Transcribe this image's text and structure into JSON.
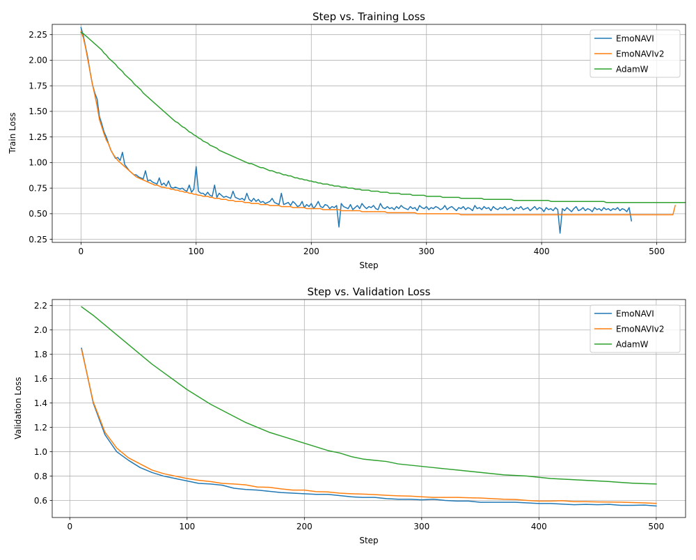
{
  "colors": {
    "EmoNAVI": "#1f77b4",
    "EmoNAVIv2": "#ff7f0e",
    "AdamW": "#2ca02c"
  },
  "chart_data": [
    {
      "type": "line",
      "title": "Step vs. Training Loss",
      "xlabel": "Step",
      "ylabel": "Train Loss",
      "xlim": [
        -25,
        525
      ],
      "ylim": [
        0.22,
        2.35
      ],
      "xticks": [
        0,
        100,
        200,
        300,
        400,
        500
      ],
      "yticks": [
        0.25,
        0.5,
        0.75,
        1.0,
        1.25,
        1.5,
        1.75,
        2.0,
        2.25
      ],
      "ytick_labels": [
        "0.25",
        "0.50",
        "0.75",
        "1.00",
        "1.25",
        "1.50",
        "1.75",
        "2.00",
        "2.25"
      ],
      "grid": true,
      "legend_position": "top-right",
      "x_step": 2,
      "series": [
        {
          "name": "EmoNAVI",
          "color_key": "EmoNAVI",
          "values": [
            2.32,
            2.24,
            2.13,
            2.02,
            1.88,
            1.76,
            1.68,
            1.62,
            1.45,
            1.38,
            1.3,
            1.25,
            1.18,
            1.12,
            1.08,
            1.04,
            1.05,
            1.02,
            1.1,
            0.98,
            0.95,
            0.92,
            0.9,
            0.88,
            0.88,
            0.86,
            0.85,
            0.84,
            0.92,
            0.82,
            0.83,
            0.81,
            0.8,
            0.79,
            0.85,
            0.78,
            0.8,
            0.77,
            0.82,
            0.76,
            0.75,
            0.76,
            0.75,
            0.74,
            0.75,
            0.73,
            0.72,
            0.78,
            0.71,
            0.74,
            0.96,
            0.72,
            0.7,
            0.7,
            0.68,
            0.71,
            0.68,
            0.67,
            0.78,
            0.66,
            0.7,
            0.68,
            0.66,
            0.67,
            0.66,
            0.65,
            0.72,
            0.66,
            0.65,
            0.64,
            0.65,
            0.63,
            0.7,
            0.64,
            0.62,
            0.65,
            0.62,
            0.64,
            0.61,
            0.62,
            0.6,
            0.61,
            0.62,
            0.65,
            0.61,
            0.6,
            0.59,
            0.7,
            0.59,
            0.6,
            0.61,
            0.58,
            0.62,
            0.6,
            0.57,
            0.58,
            0.62,
            0.56,
            0.59,
            0.57,
            0.6,
            0.55,
            0.58,
            0.62,
            0.57,
            0.56,
            0.59,
            0.58,
            0.55,
            0.57,
            0.56,
            0.58,
            0.37,
            0.6,
            0.57,
            0.56,
            0.55,
            0.59,
            0.54,
            0.56,
            0.58,
            0.55,
            0.6,
            0.57,
            0.55,
            0.57,
            0.56,
            0.58,
            0.55,
            0.54,
            0.6,
            0.56,
            0.55,
            0.57,
            0.55,
            0.56,
            0.54,
            0.57,
            0.55,
            0.58,
            0.56,
            0.55,
            0.54,
            0.57,
            0.55,
            0.56,
            0.53,
            0.58,
            0.56,
            0.55,
            0.57,
            0.54,
            0.56,
            0.55,
            0.57,
            0.56,
            0.54,
            0.55,
            0.58,
            0.54,
            0.56,
            0.57,
            0.55,
            0.53,
            0.56,
            0.55,
            0.57,
            0.54,
            0.56,
            0.55,
            0.53,
            0.58,
            0.55,
            0.56,
            0.54,
            0.57,
            0.55,
            0.56,
            0.53,
            0.57,
            0.55,
            0.54,
            0.56,
            0.55,
            0.57,
            0.54,
            0.55,
            0.56,
            0.53,
            0.56,
            0.55,
            0.57,
            0.54,
            0.55,
            0.56,
            0.53,
            0.55,
            0.57,
            0.54,
            0.56,
            0.55,
            0.52,
            0.56,
            0.54,
            0.55,
            0.53,
            0.56,
            0.54,
            0.31,
            0.55,
            0.53,
            0.56,
            0.54,
            0.52,
            0.55,
            0.57,
            0.53,
            0.54,
            0.56,
            0.53,
            0.55,
            0.54,
            0.52,
            0.56,
            0.54,
            0.55,
            0.53,
            0.56,
            0.54,
            0.55,
            0.53,
            0.55,
            0.54,
            0.56,
            0.53,
            0.55,
            0.54,
            0.52,
            0.56,
            0.43
          ]
        },
        {
          "name": "EmoNAVIv2",
          "color_key": "EmoNAVIv2",
          "values": [
            2.28,
            2.22,
            2.12,
            2.0,
            1.88,
            1.76,
            1.66,
            1.55,
            1.42,
            1.35,
            1.28,
            1.22,
            1.18,
            1.12,
            1.08,
            1.05,
            1.02,
            1.0,
            0.98,
            0.96,
            0.94,
            0.92,
            0.9,
            0.88,
            0.86,
            0.85,
            0.84,
            0.83,
            0.82,
            0.81,
            0.8,
            0.79,
            0.78,
            0.78,
            0.77,
            0.76,
            0.76,
            0.75,
            0.75,
            0.74,
            0.74,
            0.73,
            0.73,
            0.72,
            0.72,
            0.71,
            0.71,
            0.7,
            0.7,
            0.69,
            0.69,
            0.68,
            0.68,
            0.67,
            0.67,
            0.67,
            0.66,
            0.66,
            0.65,
            0.65,
            0.65,
            0.64,
            0.64,
            0.64,
            0.63,
            0.63,
            0.63,
            0.62,
            0.62,
            0.62,
            0.62,
            0.61,
            0.61,
            0.61,
            0.6,
            0.6,
            0.6,
            0.6,
            0.59,
            0.59,
            0.59,
            0.59,
            0.58,
            0.58,
            0.58,
            0.58,
            0.58,
            0.57,
            0.57,
            0.57,
            0.57,
            0.57,
            0.56,
            0.56,
            0.56,
            0.56,
            0.56,
            0.56,
            0.55,
            0.55,
            0.55,
            0.55,
            0.55,
            0.55,
            0.55,
            0.54,
            0.54,
            0.54,
            0.54,
            0.54,
            0.54,
            0.54,
            0.54,
            0.53,
            0.53,
            0.53,
            0.53,
            0.53,
            0.53,
            0.53,
            0.53,
            0.53,
            0.52,
            0.52,
            0.52,
            0.52,
            0.52,
            0.52,
            0.52,
            0.52,
            0.52,
            0.52,
            0.52,
            0.51,
            0.51,
            0.51,
            0.51,
            0.51,
            0.51,
            0.51,
            0.51,
            0.51,
            0.51,
            0.51,
            0.51,
            0.51,
            0.5,
            0.5,
            0.5,
            0.5,
            0.5,
            0.5,
            0.5,
            0.5,
            0.5,
            0.5,
            0.5,
            0.5,
            0.5,
            0.5,
            0.5,
            0.5,
            0.5,
            0.5,
            0.5,
            0.49,
            0.49,
            0.49,
            0.49,
            0.49,
            0.49,
            0.49,
            0.49,
            0.49,
            0.49,
            0.49,
            0.49,
            0.49,
            0.49,
            0.49,
            0.49,
            0.49,
            0.49,
            0.49,
            0.49,
            0.49,
            0.49,
            0.49,
            0.49,
            0.49,
            0.49,
            0.49,
            0.49,
            0.49,
            0.49,
            0.49,
            0.49,
            0.49,
            0.49,
            0.49,
            0.49,
            0.49,
            0.49,
            0.49,
            0.49,
            0.49,
            0.49,
            0.49,
            0.49,
            0.49,
            0.49,
            0.49,
            0.49,
            0.49,
            0.49,
            0.49,
            0.49,
            0.49,
            0.49,
            0.49,
            0.49,
            0.49,
            0.49,
            0.49,
            0.49,
            0.49,
            0.49,
            0.49,
            0.49,
            0.49,
            0.49,
            0.49,
            0.49,
            0.49,
            0.49,
            0.49,
            0.49,
            0.49,
            0.49,
            0.49,
            0.49,
            0.49,
            0.49,
            0.49,
            0.49,
            0.49,
            0.49,
            0.49,
            0.49,
            0.49,
            0.49,
            0.49,
            0.49,
            0.49,
            0.49,
            0.49,
            0.49,
            0.49,
            0.58
          ]
        },
        {
          "name": "AdamW",
          "color_key": "AdamW",
          "values": [
            2.27,
            2.26,
            2.24,
            2.22,
            2.2,
            2.18,
            2.16,
            2.14,
            2.12,
            2.1,
            2.07,
            2.05,
            2.02,
            2.0,
            1.98,
            1.96,
            1.93,
            1.91,
            1.89,
            1.86,
            1.84,
            1.82,
            1.8,
            1.77,
            1.75,
            1.73,
            1.71,
            1.68,
            1.66,
            1.64,
            1.62,
            1.6,
            1.58,
            1.56,
            1.54,
            1.52,
            1.5,
            1.48,
            1.46,
            1.44,
            1.42,
            1.4,
            1.39,
            1.37,
            1.35,
            1.34,
            1.32,
            1.3,
            1.29,
            1.27,
            1.26,
            1.24,
            1.23,
            1.21,
            1.2,
            1.19,
            1.17,
            1.16,
            1.15,
            1.14,
            1.12,
            1.11,
            1.1,
            1.09,
            1.08,
            1.07,
            1.06,
            1.05,
            1.04,
            1.03,
            1.02,
            1.01,
            1.0,
            0.99,
            0.99,
            0.98,
            0.97,
            0.96,
            0.95,
            0.95,
            0.94,
            0.93,
            0.92,
            0.92,
            0.91,
            0.9,
            0.9,
            0.89,
            0.88,
            0.88,
            0.87,
            0.87,
            0.86,
            0.85,
            0.85,
            0.84,
            0.84,
            0.83,
            0.83,
            0.82,
            0.82,
            0.81,
            0.81,
            0.8,
            0.8,
            0.79,
            0.79,
            0.79,
            0.78,
            0.78,
            0.77,
            0.77,
            0.77,
            0.76,
            0.76,
            0.76,
            0.75,
            0.75,
            0.75,
            0.74,
            0.74,
            0.74,
            0.73,
            0.73,
            0.73,
            0.73,
            0.72,
            0.72,
            0.72,
            0.72,
            0.71,
            0.71,
            0.71,
            0.71,
            0.7,
            0.7,
            0.7,
            0.7,
            0.7,
            0.69,
            0.69,
            0.69,
            0.69,
            0.69,
            0.68,
            0.68,
            0.68,
            0.68,
            0.68,
            0.68,
            0.67,
            0.67,
            0.67,
            0.67,
            0.67,
            0.67,
            0.67,
            0.66,
            0.66,
            0.66,
            0.66,
            0.66,
            0.66,
            0.66,
            0.66,
            0.65,
            0.65,
            0.65,
            0.65,
            0.65,
            0.65,
            0.65,
            0.65,
            0.65,
            0.65,
            0.64,
            0.64,
            0.64,
            0.64,
            0.64,
            0.64,
            0.64,
            0.64,
            0.64,
            0.64,
            0.64,
            0.64,
            0.64,
            0.63,
            0.63,
            0.63,
            0.63,
            0.63,
            0.63,
            0.63,
            0.63,
            0.63,
            0.63,
            0.63,
            0.63,
            0.63,
            0.63,
            0.63,
            0.63,
            0.62,
            0.62,
            0.62,
            0.62,
            0.62,
            0.62,
            0.62,
            0.62,
            0.62,
            0.62,
            0.62,
            0.62,
            0.62,
            0.62,
            0.62,
            0.62,
            0.62,
            0.62,
            0.62,
            0.62,
            0.62,
            0.62,
            0.62,
            0.62,
            0.61,
            0.61,
            0.61,
            0.61,
            0.61,
            0.61,
            0.61,
            0.61,
            0.61,
            0.61,
            0.61,
            0.61,
            0.61,
            0.61,
            0.61,
            0.61,
            0.61,
            0.61,
            0.61,
            0.61,
            0.61,
            0.61,
            0.61,
            0.61,
            0.61,
            0.61,
            0.61,
            0.61,
            0.61,
            0.61,
            0.61,
            0.61,
            0.61,
            0.61,
            0.61,
            0.61,
            0.61,
            0.61,
            0.61,
            0.61,
            0.61,
            0.68
          ]
        }
      ]
    },
    {
      "type": "line",
      "title": "Step vs. Validation Loss",
      "xlabel": "Step",
      "ylabel": "Validation Loss",
      "xlim": [
        -15,
        525
      ],
      "ylim": [
        0.46,
        2.25
      ],
      "xticks": [
        0,
        100,
        200,
        300,
        400,
        500
      ],
      "yticks": [
        0.6,
        0.8,
        1.0,
        1.2,
        1.4,
        1.6,
        1.8,
        2.0,
        2.2
      ],
      "ytick_labels": [
        "0.6",
        "0.8",
        "1.0",
        "1.2",
        "1.4",
        "1.6",
        "1.8",
        "2.0",
        "2.2"
      ],
      "grid": true,
      "legend_position": "top-right",
      "x": [
        10,
        20,
        30,
        40,
        50,
        60,
        70,
        80,
        90,
        100,
        110,
        120,
        130,
        140,
        150,
        160,
        170,
        180,
        190,
        200,
        210,
        220,
        230,
        240,
        250,
        260,
        270,
        280,
        290,
        300,
        310,
        320,
        330,
        340,
        350,
        360,
        370,
        380,
        390,
        400,
        410,
        420,
        430,
        440,
        450,
        460,
        470,
        480,
        490,
        500
      ],
      "series": [
        {
          "name": "EmoNAVI",
          "color_key": "EmoNAVI",
          "values": [
            1.85,
            1.4,
            1.14,
            1.0,
            0.93,
            0.87,
            0.83,
            0.8,
            0.78,
            0.76,
            0.74,
            0.735,
            0.725,
            0.7,
            0.69,
            0.685,
            0.675,
            0.665,
            0.66,
            0.655,
            0.65,
            0.65,
            0.64,
            0.63,
            0.625,
            0.625,
            0.615,
            0.61,
            0.61,
            0.605,
            0.61,
            0.6,
            0.595,
            0.595,
            0.585,
            0.585,
            0.585,
            0.585,
            0.58,
            0.575,
            0.575,
            0.57,
            0.565,
            0.568,
            0.565,
            0.568,
            0.56,
            0.56,
            0.562,
            0.555
          ]
        },
        {
          "name": "EmoNAVIv2",
          "color_key": "EmoNAVIv2",
          "values": [
            1.84,
            1.41,
            1.16,
            1.03,
            0.95,
            0.9,
            0.85,
            0.82,
            0.8,
            0.78,
            0.765,
            0.755,
            0.74,
            0.735,
            0.728,
            0.71,
            0.708,
            0.695,
            0.685,
            0.685,
            0.672,
            0.67,
            0.66,
            0.655,
            0.652,
            0.648,
            0.642,
            0.638,
            0.636,
            0.63,
            0.625,
            0.625,
            0.625,
            0.622,
            0.62,
            0.615,
            0.61,
            0.608,
            0.6,
            0.595,
            0.595,
            0.598,
            0.59,
            0.59,
            0.588,
            0.587,
            0.586,
            0.583,
            0.58,
            0.576
          ]
        },
        {
          "name": "AdamW",
          "color_key": "AdamW",
          "values": [
            2.19,
            2.12,
            2.04,
            1.96,
            1.88,
            1.8,
            1.72,
            1.65,
            1.58,
            1.51,
            1.45,
            1.39,
            1.34,
            1.29,
            1.24,
            1.2,
            1.16,
            1.13,
            1.1,
            1.07,
            1.04,
            1.01,
            0.99,
            0.96,
            0.94,
            0.93,
            0.92,
            0.9,
            0.89,
            0.88,
            0.87,
            0.86,
            0.85,
            0.84,
            0.83,
            0.82,
            0.81,
            0.805,
            0.8,
            0.79,
            0.78,
            0.775,
            0.77,
            0.765,
            0.76,
            0.755,
            0.748,
            0.742,
            0.738,
            0.735
          ]
        }
      ]
    }
  ]
}
